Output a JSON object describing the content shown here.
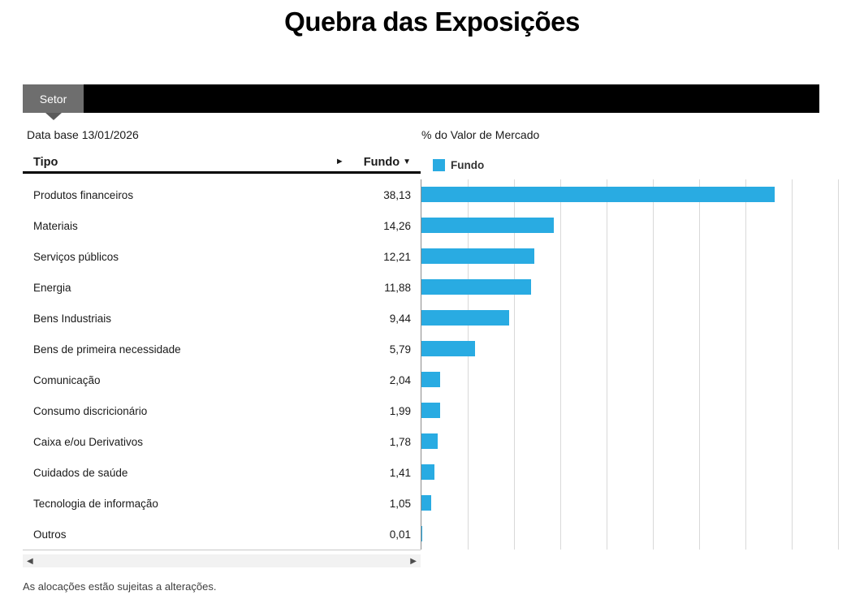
{
  "title": "Quebra das Exposições",
  "tab_bar": {
    "active_tab": "Setor"
  },
  "meta": {
    "data_base_label": "Data base 13/01/2026",
    "chart_header": "% do Valor de Mercado"
  },
  "table": {
    "columns": {
      "tipo": "Tipo",
      "fundo": "Fundo"
    },
    "sort_indicator": "▼",
    "scroll_indicator": "►",
    "rows": [
      {
        "label": "Produtos financeiros",
        "value": "38,13"
      },
      {
        "label": "Materiais",
        "value": "14,26"
      },
      {
        "label": "Serviços públicos",
        "value": "12,21"
      },
      {
        "label": "Energia",
        "value": "11,88"
      },
      {
        "label": "Bens Industriais",
        "value": "9,44"
      },
      {
        "label": "Bens de primeira necessidade",
        "value": "5,79"
      },
      {
        "label": "Comunicação",
        "value": "2,04"
      },
      {
        "label": "Consumo discricionário",
        "value": "1,99"
      },
      {
        "label": "Caixa e/ou Derivativos",
        "value": "1,78"
      },
      {
        "label": "Cuidados de saúde",
        "value": "1,41"
      },
      {
        "label": "Tecnologia de informação",
        "value": "1,05"
      },
      {
        "label": "Outros",
        "value": "0,01"
      }
    ]
  },
  "chart_data": {
    "type": "bar",
    "orientation": "horizontal",
    "title": "% do Valor de Mercado",
    "xlabel": "",
    "ylabel": "",
    "legend": [
      "Fundo"
    ],
    "legend_position": "top-left",
    "categories": [
      "Produtos financeiros",
      "Materiais",
      "Serviços públicos",
      "Energia",
      "Bens Industriais",
      "Bens de primeira necessidade",
      "Comunicação",
      "Consumo discricionário",
      "Caixa e/ou Derivativos",
      "Cuidados de saúde",
      "Tecnologia de informação",
      "Outros"
    ],
    "values": [
      38.13,
      14.26,
      12.21,
      11.88,
      9.44,
      5.79,
      2.04,
      1.99,
      1.78,
      1.41,
      1.05,
      0.01
    ],
    "xlim": [
      0,
      45
    ],
    "gridline_interval": 5,
    "grid": true
  },
  "scrollbar": {
    "left_arrow": "◀",
    "right_arrow": "▶"
  },
  "footer": {
    "disclaimer": "As alocações estão sujeitas a alterações."
  },
  "colors": {
    "bar": "#29abe2",
    "tab_bg": "#6e6e6e",
    "tab_pointer": "#5a5a5a",
    "strip": "#000000",
    "gridline": "#d9d9d9",
    "axis": "#8c8c8c"
  }
}
